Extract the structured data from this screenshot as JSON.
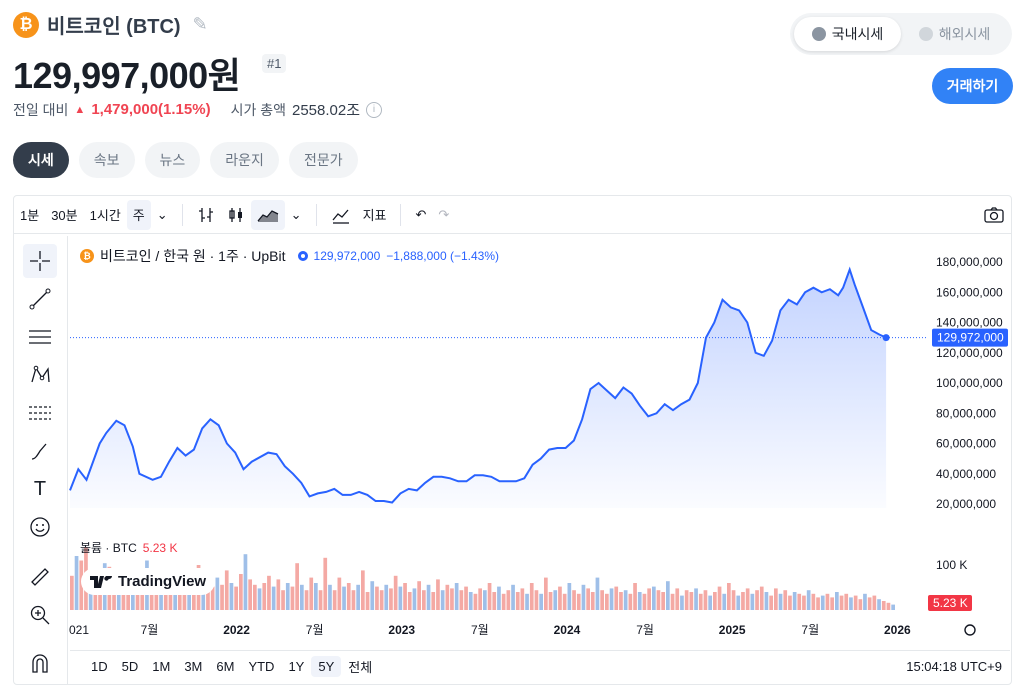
{
  "header": {
    "coin_symbol": "₿",
    "coin_title": "비트코인 (BTC)",
    "price": "129,997,000원",
    "rank": "#1",
    "change_label": "전일 대비",
    "change_value": "1,479,000(1.15%)",
    "mcap_label": "시가 총액",
    "mcap_value": "2558.02조"
  },
  "market_toggle": [
    {
      "label": "국내시세",
      "active": true
    },
    {
      "label": "해외시세",
      "active": false
    }
  ],
  "trade_button": "거래하기",
  "tabs": [
    {
      "label": "시세",
      "active": true
    },
    {
      "label": "속보"
    },
    {
      "label": "뉴스"
    },
    {
      "label": "라운지"
    },
    {
      "label": "전문가"
    }
  ],
  "toolbar": {
    "intervals": [
      "1분",
      "30분",
      "1시간",
      "주"
    ],
    "selected_interval": "주",
    "indicators_label": "지표"
  },
  "legend": {
    "name": "비트코인 / 한국 원 · 1주 · UpBit",
    "last": "129,972,000",
    "change": "−1,888,000 (−1.43%)"
  },
  "volume_legend": {
    "label": "볼륨 · BTC",
    "value": "5.23 K"
  },
  "tv_brand": "TradingView",
  "range_buttons": [
    "1D",
    "5D",
    "1M",
    "3M",
    "6M",
    "YTD",
    "1Y",
    "5Y",
    "전체"
  ],
  "selected_range": "5Y",
  "clock": "15:04:18 UTC+9",
  "colors": {
    "line": "#2962ff",
    "up": "#f23645",
    "accent": "#3182f6"
  },
  "chart_data": {
    "type": "area",
    "series": [
      {
        "name": "비트코인 / 한국 원",
        "values": [
          [
            2021.0,
            29
          ],
          [
            2021.05,
            43
          ],
          [
            2021.1,
            36
          ],
          [
            2021.18,
            60
          ],
          [
            2021.22,
            67
          ],
          [
            2021.28,
            75
          ],
          [
            2021.33,
            72
          ],
          [
            2021.38,
            58
          ],
          [
            2021.42,
            40
          ],
          [
            2021.5,
            36
          ],
          [
            2021.55,
            38
          ],
          [
            2021.6,
            48
          ],
          [
            2021.65,
            57
          ],
          [
            2021.7,
            52
          ],
          [
            2021.75,
            56
          ],
          [
            2021.8,
            70
          ],
          [
            2021.85,
            76
          ],
          [
            2021.9,
            72
          ],
          [
            2021.95,
            60
          ],
          [
            2022.0,
            54
          ],
          [
            2022.05,
            43
          ],
          [
            2022.1,
            48
          ],
          [
            2022.2,
            54
          ],
          [
            2022.25,
            53
          ],
          [
            2022.3,
            45
          ],
          [
            2022.35,
            40
          ],
          [
            2022.4,
            34
          ],
          [
            2022.45,
            25
          ],
          [
            2022.5,
            27
          ],
          [
            2022.55,
            28
          ],
          [
            2022.6,
            30
          ],
          [
            2022.65,
            26
          ],
          [
            2022.7,
            26
          ],
          [
            2022.75,
            28
          ],
          [
            2022.8,
            26
          ],
          [
            2022.85,
            22
          ],
          [
            2022.9,
            22
          ],
          [
            2022.95,
            21
          ],
          [
            2023.0,
            27
          ],
          [
            2023.05,
            30
          ],
          [
            2023.1,
            29
          ],
          [
            2023.15,
            34
          ],
          [
            2023.2,
            38
          ],
          [
            2023.25,
            38
          ],
          [
            2023.3,
            37
          ],
          [
            2023.35,
            35
          ],
          [
            2023.4,
            35
          ],
          [
            2023.45,
            39
          ],
          [
            2023.5,
            39
          ],
          [
            2023.55,
            38
          ],
          [
            2023.6,
            35
          ],
          [
            2023.65,
            35
          ],
          [
            2023.7,
            35
          ],
          [
            2023.75,
            37
          ],
          [
            2023.8,
            46
          ],
          [
            2023.85,
            50
          ],
          [
            2023.9,
            56
          ],
          [
            2023.95,
            57
          ],
          [
            2024.0,
            57
          ],
          [
            2024.05,
            62
          ],
          [
            2024.1,
            76
          ],
          [
            2024.15,
            96
          ],
          [
            2024.2,
            100
          ],
          [
            2024.25,
            95
          ],
          [
            2024.3,
            90
          ],
          [
            2024.35,
            97
          ],
          [
            2024.4,
            93
          ],
          [
            2024.45,
            85
          ],
          [
            2024.5,
            78
          ],
          [
            2024.55,
            80
          ],
          [
            2024.6,
            86
          ],
          [
            2024.65,
            82
          ],
          [
            2024.7,
            86
          ],
          [
            2024.75,
            89
          ],
          [
            2024.8,
            100
          ],
          [
            2024.85,
            130
          ],
          [
            2024.9,
            140
          ],
          [
            2024.95,
            155
          ],
          [
            2025.0,
            150
          ],
          [
            2025.05,
            148
          ],
          [
            2025.1,
            140
          ],
          [
            2025.15,
            120
          ],
          [
            2025.2,
            118
          ],
          [
            2025.25,
            128
          ],
          [
            2025.3,
            148
          ],
          [
            2025.35,
            155
          ],
          [
            2025.4,
            152
          ],
          [
            2025.45,
            160
          ],
          [
            2025.5,
            163
          ],
          [
            2025.55,
            160
          ],
          [
            2025.6,
            162
          ],
          [
            2025.65,
            158
          ],
          [
            2025.68,
            163
          ],
          [
            2025.72,
            175
          ],
          [
            2025.75,
            165
          ],
          [
            2025.8,
            150
          ],
          [
            2025.85,
            135
          ],
          [
            2025.9,
            132
          ],
          [
            2025.94,
            130
          ]
        ]
      }
    ],
    "xlabels": [
      "021",
      "7월",
      "2022",
      "7월",
      "2023",
      "7월",
      "2024",
      "7월",
      "2025",
      "7월",
      "2026"
    ],
    "xtick_values": [
      2021.0,
      2021.5,
      2022.0,
      2022.5,
      2023.0,
      2023.5,
      2024.0,
      2024.5,
      2025.0,
      2025.5,
      2026.0
    ],
    "yticks": [
      "20,000,000",
      "40,000,000",
      "60,000,000",
      "80,000,000",
      "100,000,000",
      "120,000,000",
      "140,000,000",
      "160,000,000",
      "180,000,000"
    ],
    "ytick_values": [
      20,
      40,
      60,
      80,
      100,
      120,
      140,
      160,
      180
    ],
    "ylabel_unit_note": "",
    "last_price_label": "129,972,000",
    "last_price_value": 130,
    "volume_axis_label": "100 K",
    "volume_last_label": "5.23 K",
    "volume": {
      "values": [
        38,
        60,
        55,
        70,
        45,
        40,
        35,
        52,
        48,
        30,
        44,
        36,
        28,
        40,
        33,
        42,
        55,
        30,
        38,
        26,
        30,
        44,
        34,
        28,
        36,
        24,
        32,
        50,
        38,
        30,
        26,
        36,
        28,
        44,
        30,
        26,
        40,
        62,
        34,
        28,
        24,
        30,
        38,
        26,
        34,
        22,
        30,
        26,
        52,
        28,
        22,
        36,
        30,
        22,
        58,
        28,
        22,
        36,
        26,
        30,
        22,
        28,
        44,
        20,
        32,
        26,
        22,
        28,
        24,
        38,
        26,
        30,
        20,
        24,
        32,
        22,
        28,
        20,
        34,
        22,
        28,
        24,
        30,
        22,
        26,
        20,
        18,
        24,
        22,
        30,
        20,
        26,
        18,
        22,
        28,
        20,
        24,
        18,
        30,
        22,
        18,
        36,
        20,
        22,
        26,
        18,
        30,
        22,
        18,
        28,
        24,
        20,
        36,
        22,
        18,
        24,
        26,
        20,
        22,
        18,
        30,
        20,
        18,
        24,
        26,
        22,
        20,
        32,
        18,
        24,
        16,
        22,
        20,
        24,
        18,
        22,
        16,
        20,
        26,
        18,
        30,
        22,
        16,
        20,
        24,
        18,
        22,
        26,
        20,
        16,
        24,
        18,
        22,
        16,
        20,
        18,
        16,
        22,
        18,
        14,
        16,
        18,
        14,
        20,
        16,
        18,
        14,
        16,
        12,
        18,
        14,
        16,
        12,
        10,
        8,
        6
      ]
    }
  }
}
